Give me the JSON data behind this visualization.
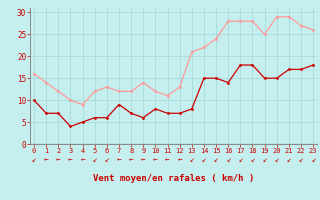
{
  "x": [
    0,
    1,
    2,
    3,
    4,
    5,
    6,
    7,
    8,
    9,
    10,
    11,
    12,
    13,
    14,
    15,
    16,
    17,
    18,
    19,
    20,
    21,
    22,
    23
  ],
  "y_moyen": [
    10,
    7,
    7,
    4,
    5,
    6,
    6,
    9,
    7,
    6,
    8,
    7,
    7,
    8,
    15,
    15,
    14,
    18,
    18,
    15,
    15,
    17,
    17,
    18
  ],
  "y_rafales": [
    16,
    14,
    12,
    10,
    9,
    12,
    13,
    12,
    12,
    14,
    12,
    11,
    13,
    21,
    22,
    24,
    28,
    28,
    28,
    25,
    29,
    29,
    27,
    26
  ],
  "bg_color": "#c5eeee",
  "grid_color": "#aadddd",
  "line_color_moyen": "#cc0000",
  "line_color_rafales": "#ff9999",
  "xlabel": "Vent moyen/en rafales ( km/h )",
  "xlabel_color": "#cc0000",
  "tick_color": "#cc0000",
  "ylim": [
    0,
    31
  ],
  "yticks": [
    0,
    5,
    10,
    15,
    20,
    25,
    30
  ],
  "arrow_chars": [
    "↙",
    "←",
    "←",
    "←",
    "←",
    "↙",
    "↙",
    "←",
    "←",
    "←",
    "←",
    "←",
    "←",
    "↙",
    "↙",
    "↙",
    "↙",
    "↙",
    "↙",
    "↙",
    "↙",
    "↙",
    "↙",
    "↙"
  ]
}
